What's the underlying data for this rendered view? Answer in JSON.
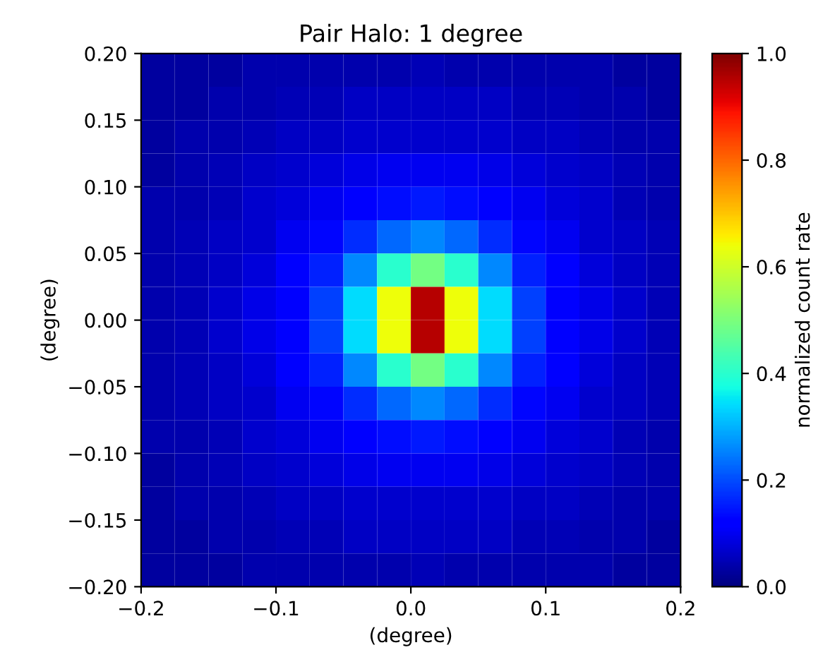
{
  "chart_data": {
    "type": "heatmap",
    "title": "Pair Halo: 1 degree",
    "xlabel": "(degree)",
    "ylabel": "(degree)",
    "clabel": "normalized count rate",
    "xlim": [
      -0.2,
      0.2
    ],
    "xticks": [
      {
        "value": -0.2,
        "label": "−0.2"
      },
      {
        "value": -0.1,
        "label": "−0.1"
      },
      {
        "value": 0.0,
        "label": "0.0"
      },
      {
        "value": 0.1,
        "label": "0.1"
      },
      {
        "value": 0.2,
        "label": "0.2"
      }
    ],
    "ylim": [
      -0.2,
      0.2
    ],
    "yticks": [
      {
        "value": -0.2,
        "label": "−0.20"
      },
      {
        "value": -0.15,
        "label": "−0.15"
      },
      {
        "value": -0.1,
        "label": "−0.10"
      },
      {
        "value": -0.05,
        "label": "−0.05"
      },
      {
        "value": 0.0,
        "label": "0.00"
      },
      {
        "value": 0.05,
        "label": "0.05"
      },
      {
        "value": 0.1,
        "label": "0.10"
      },
      {
        "value": 0.15,
        "label": "0.15"
      },
      {
        "value": 0.2,
        "label": "0.20"
      }
    ],
    "clim": [
      0.0,
      1.0
    ],
    "cticks": [
      {
        "value": 0.0,
        "label": "0.0"
      },
      {
        "value": 0.2,
        "label": "0.2"
      },
      {
        "value": 0.4,
        "label": "0.4"
      },
      {
        "value": 0.6,
        "label": "0.6"
      },
      {
        "value": 0.8,
        "label": "0.8"
      },
      {
        "value": 1.0,
        "label": "1.0"
      }
    ],
    "cells": [
      [
        0.03,
        0.03,
        0.03,
        0.04,
        0.04,
        0.04,
        0.04,
        0.04,
        0.05,
        0.04,
        0.04,
        0.04,
        0.04,
        0.04,
        0.03,
        0.03
      ],
      [
        0.03,
        0.03,
        0.04,
        0.04,
        0.05,
        0.05,
        0.06,
        0.06,
        0.06,
        0.06,
        0.06,
        0.05,
        0.05,
        0.04,
        0.04,
        0.03
      ],
      [
        0.03,
        0.04,
        0.04,
        0.05,
        0.06,
        0.06,
        0.07,
        0.07,
        0.07,
        0.07,
        0.07,
        0.06,
        0.06,
        0.05,
        0.04,
        0.04
      ],
      [
        0.03,
        0.04,
        0.05,
        0.06,
        0.07,
        0.08,
        0.09,
        0.1,
        0.1,
        0.1,
        0.09,
        0.08,
        0.07,
        0.06,
        0.05,
        0.04
      ],
      [
        0.04,
        0.04,
        0.05,
        0.07,
        0.08,
        0.1,
        0.12,
        0.14,
        0.15,
        0.14,
        0.12,
        0.1,
        0.08,
        0.07,
        0.05,
        0.04
      ],
      [
        0.04,
        0.05,
        0.06,
        0.07,
        0.1,
        0.13,
        0.17,
        0.23,
        0.26,
        0.23,
        0.17,
        0.13,
        0.1,
        0.07,
        0.06,
        0.05
      ],
      [
        0.04,
        0.05,
        0.06,
        0.08,
        0.11,
        0.16,
        0.26,
        0.4,
        0.49,
        0.4,
        0.26,
        0.16,
        0.11,
        0.08,
        0.06,
        0.05
      ],
      [
        0.04,
        0.05,
        0.07,
        0.09,
        0.12,
        0.19,
        0.34,
        0.64,
        0.95,
        0.64,
        0.34,
        0.19,
        0.12,
        0.09,
        0.07,
        0.05
      ],
      [
        0.04,
        0.05,
        0.07,
        0.09,
        0.12,
        0.19,
        0.34,
        0.64,
        0.95,
        0.64,
        0.34,
        0.19,
        0.12,
        0.09,
        0.07,
        0.05
      ],
      [
        0.04,
        0.05,
        0.06,
        0.08,
        0.11,
        0.16,
        0.26,
        0.4,
        0.49,
        0.4,
        0.26,
        0.16,
        0.11,
        0.08,
        0.06,
        0.05
      ],
      [
        0.04,
        0.05,
        0.06,
        0.07,
        0.1,
        0.13,
        0.17,
        0.23,
        0.26,
        0.23,
        0.17,
        0.13,
        0.1,
        0.07,
        0.06,
        0.05
      ],
      [
        0.04,
        0.04,
        0.05,
        0.07,
        0.08,
        0.1,
        0.12,
        0.14,
        0.15,
        0.14,
        0.12,
        0.1,
        0.08,
        0.07,
        0.05,
        0.04
      ],
      [
        0.03,
        0.04,
        0.05,
        0.06,
        0.07,
        0.08,
        0.09,
        0.1,
        0.1,
        0.1,
        0.09,
        0.08,
        0.07,
        0.06,
        0.05,
        0.04
      ],
      [
        0.03,
        0.04,
        0.04,
        0.05,
        0.06,
        0.06,
        0.07,
        0.07,
        0.07,
        0.07,
        0.07,
        0.06,
        0.06,
        0.05,
        0.04,
        0.04
      ],
      [
        0.03,
        0.03,
        0.04,
        0.04,
        0.05,
        0.05,
        0.06,
        0.06,
        0.06,
        0.06,
        0.06,
        0.05,
        0.05,
        0.04,
        0.04,
        0.03
      ],
      [
        0.03,
        0.03,
        0.03,
        0.04,
        0.04,
        0.04,
        0.04,
        0.04,
        0.05,
        0.04,
        0.04,
        0.04,
        0.04,
        0.04,
        0.03,
        0.03
      ]
    ]
  }
}
